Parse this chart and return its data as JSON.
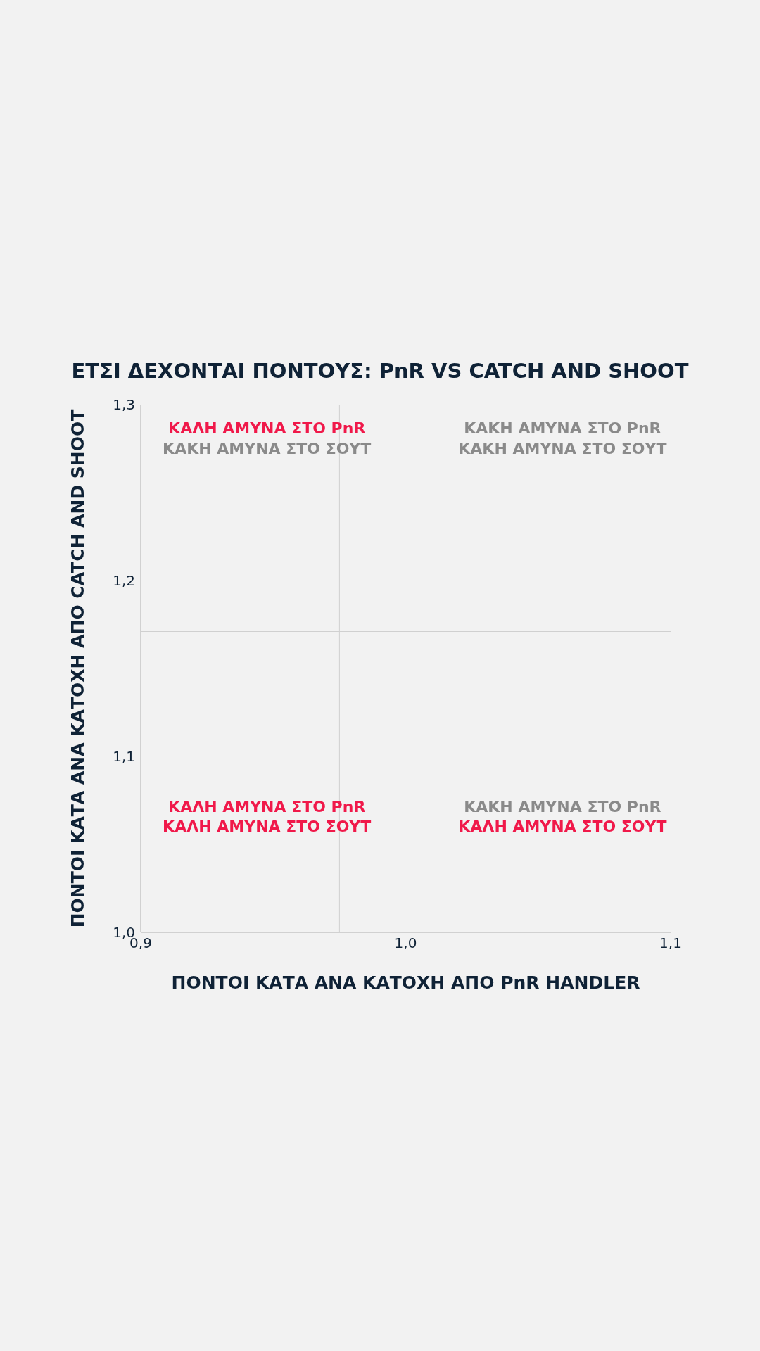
{
  "chart_data": {
    "type": "scatter",
    "title": "ΕΤΣΙ ΔΕΧΟΝΤΑΙ ΠΟΝΤΟΥΣ: PnR VS CATCH AND SHOOT",
    "xlabel": "ΠΟΝΤΟΙ ΚΑΤΑ ΑΝΑ ΚΑΤΟΧΗ ΑΠΟ PnR HANDLER",
    "ylabel": "ΠΟΝΤΟΙ ΚΑΤΑ ΑΝΑ ΚΑΤΟΧΗ ΑΠΟ CATCH AND SHOOT",
    "xlim": [
      0.9,
      1.1
    ],
    "xticks": [
      {
        "value": 0.9,
        "label": "0,9"
      },
      {
        "value": 1.0,
        "label": "1,0"
      },
      {
        "value": 1.1,
        "label": "1,1"
      }
    ],
    "ylim": [
      1.0,
      1.3
    ],
    "yticks": [
      {
        "value": 1.0,
        "label": "1,0"
      },
      {
        "value": 1.1,
        "label": "1,1"
      },
      {
        "value": 1.2,
        "label": "1,2"
      },
      {
        "value": 1.3,
        "label": "1,3"
      }
    ],
    "ref_lines": [
      {
        "axis": "x",
        "value": 0.975,
        "color": "#d0d0d0"
      },
      {
        "axis": "y",
        "value": 1.171,
        "color": "#d0d0d0"
      }
    ],
    "annotations": [
      "ΚΑΛΗ ΑΜΥΝΑ ΣΤΟ PnR",
      "ΚΑΚΗ ΑΜΥΝΑ ΣΤΟ ΣΟΥΤ",
      "ΚΑΚΗ ΑΜΥΝΑ ΣΤΟ PnR",
      "ΚΑΚΗ ΑΜΥΝΑ ΣΤΟ ΣΟΥΤ",
      "ΚΑΛΗ ΑΜΥΝΑ ΣΤΟ PnR",
      "ΚΑΛΗ ΑΜΥΝΑ ΣΤΟ ΣΟΥΤ",
      "ΚΑΚΗ ΑΜΥΝΑ ΣΤΟ PnR",
      "ΚΑΛΗ ΑΜΥΝΑ ΣΤΟ ΣΟΥΤ"
    ]
  }
}
